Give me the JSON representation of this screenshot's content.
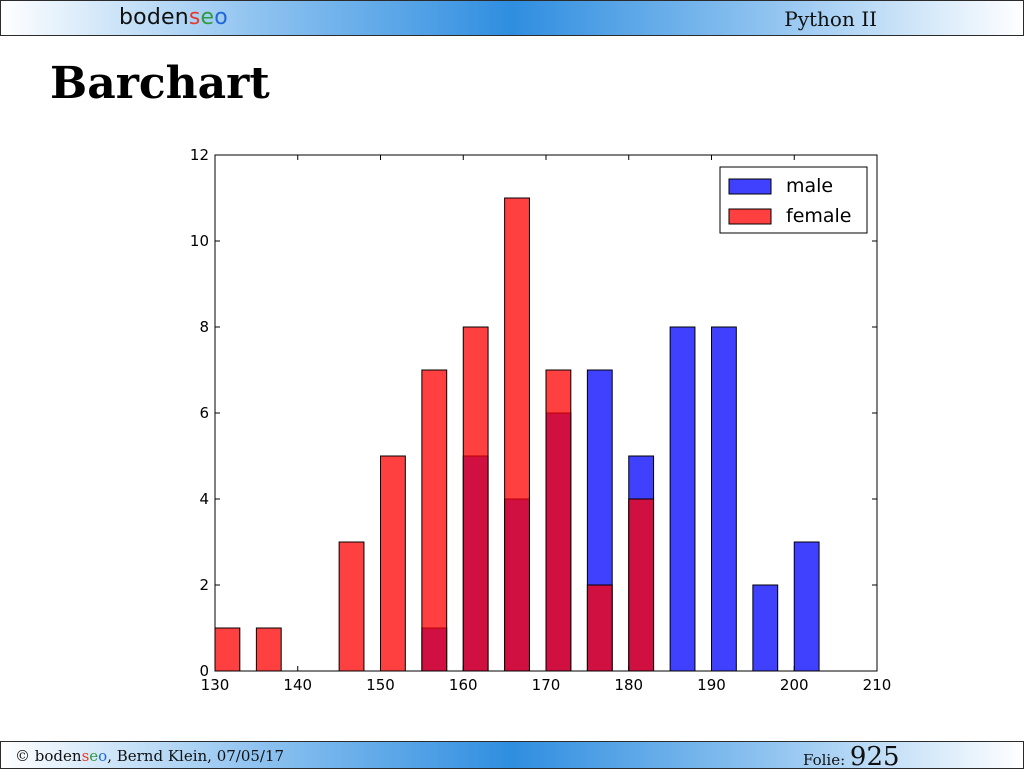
{
  "header": {
    "logo": {
      "prefix": "boden",
      "s": "s",
      "e": "e",
      "o": "o"
    },
    "course": "Python II"
  },
  "slide": {
    "title": "Barchart"
  },
  "footer": {
    "copyright_prefix": "© ",
    "author_date": ", Bernd Klein, 07/05/17",
    "folie_label": "Folie: ",
    "folie_number": "925"
  },
  "colors": {
    "male": "#0000ff",
    "female": "#ff0000"
  },
  "chart_data": {
    "type": "bar",
    "title": "",
    "xlabel": "",
    "ylabel": "",
    "xlim": [
      130,
      210
    ],
    "ylim": [
      0,
      12
    ],
    "xticks": [
      130,
      140,
      150,
      160,
      170,
      180,
      190,
      200,
      210
    ],
    "yticks": [
      0,
      2,
      4,
      6,
      8,
      10,
      12
    ],
    "grid": false,
    "legend": "top-right",
    "series": [
      {
        "name": "male",
        "color": "#0000ff",
        "x": [
          155,
          160,
          165,
          170,
          175,
          180,
          185,
          190,
          195,
          200
        ],
        "values": [
          1,
          5,
          4,
          6,
          7,
          5,
          8,
          8,
          2,
          3
        ]
      },
      {
        "name": "female",
        "color": "#ff0000",
        "x": [
          130,
          135,
          145,
          150,
          155,
          160,
          165,
          170,
          175,
          180
        ],
        "values": [
          1,
          1,
          3,
          5,
          7,
          8,
          11,
          7,
          2,
          4
        ]
      }
    ]
  }
}
